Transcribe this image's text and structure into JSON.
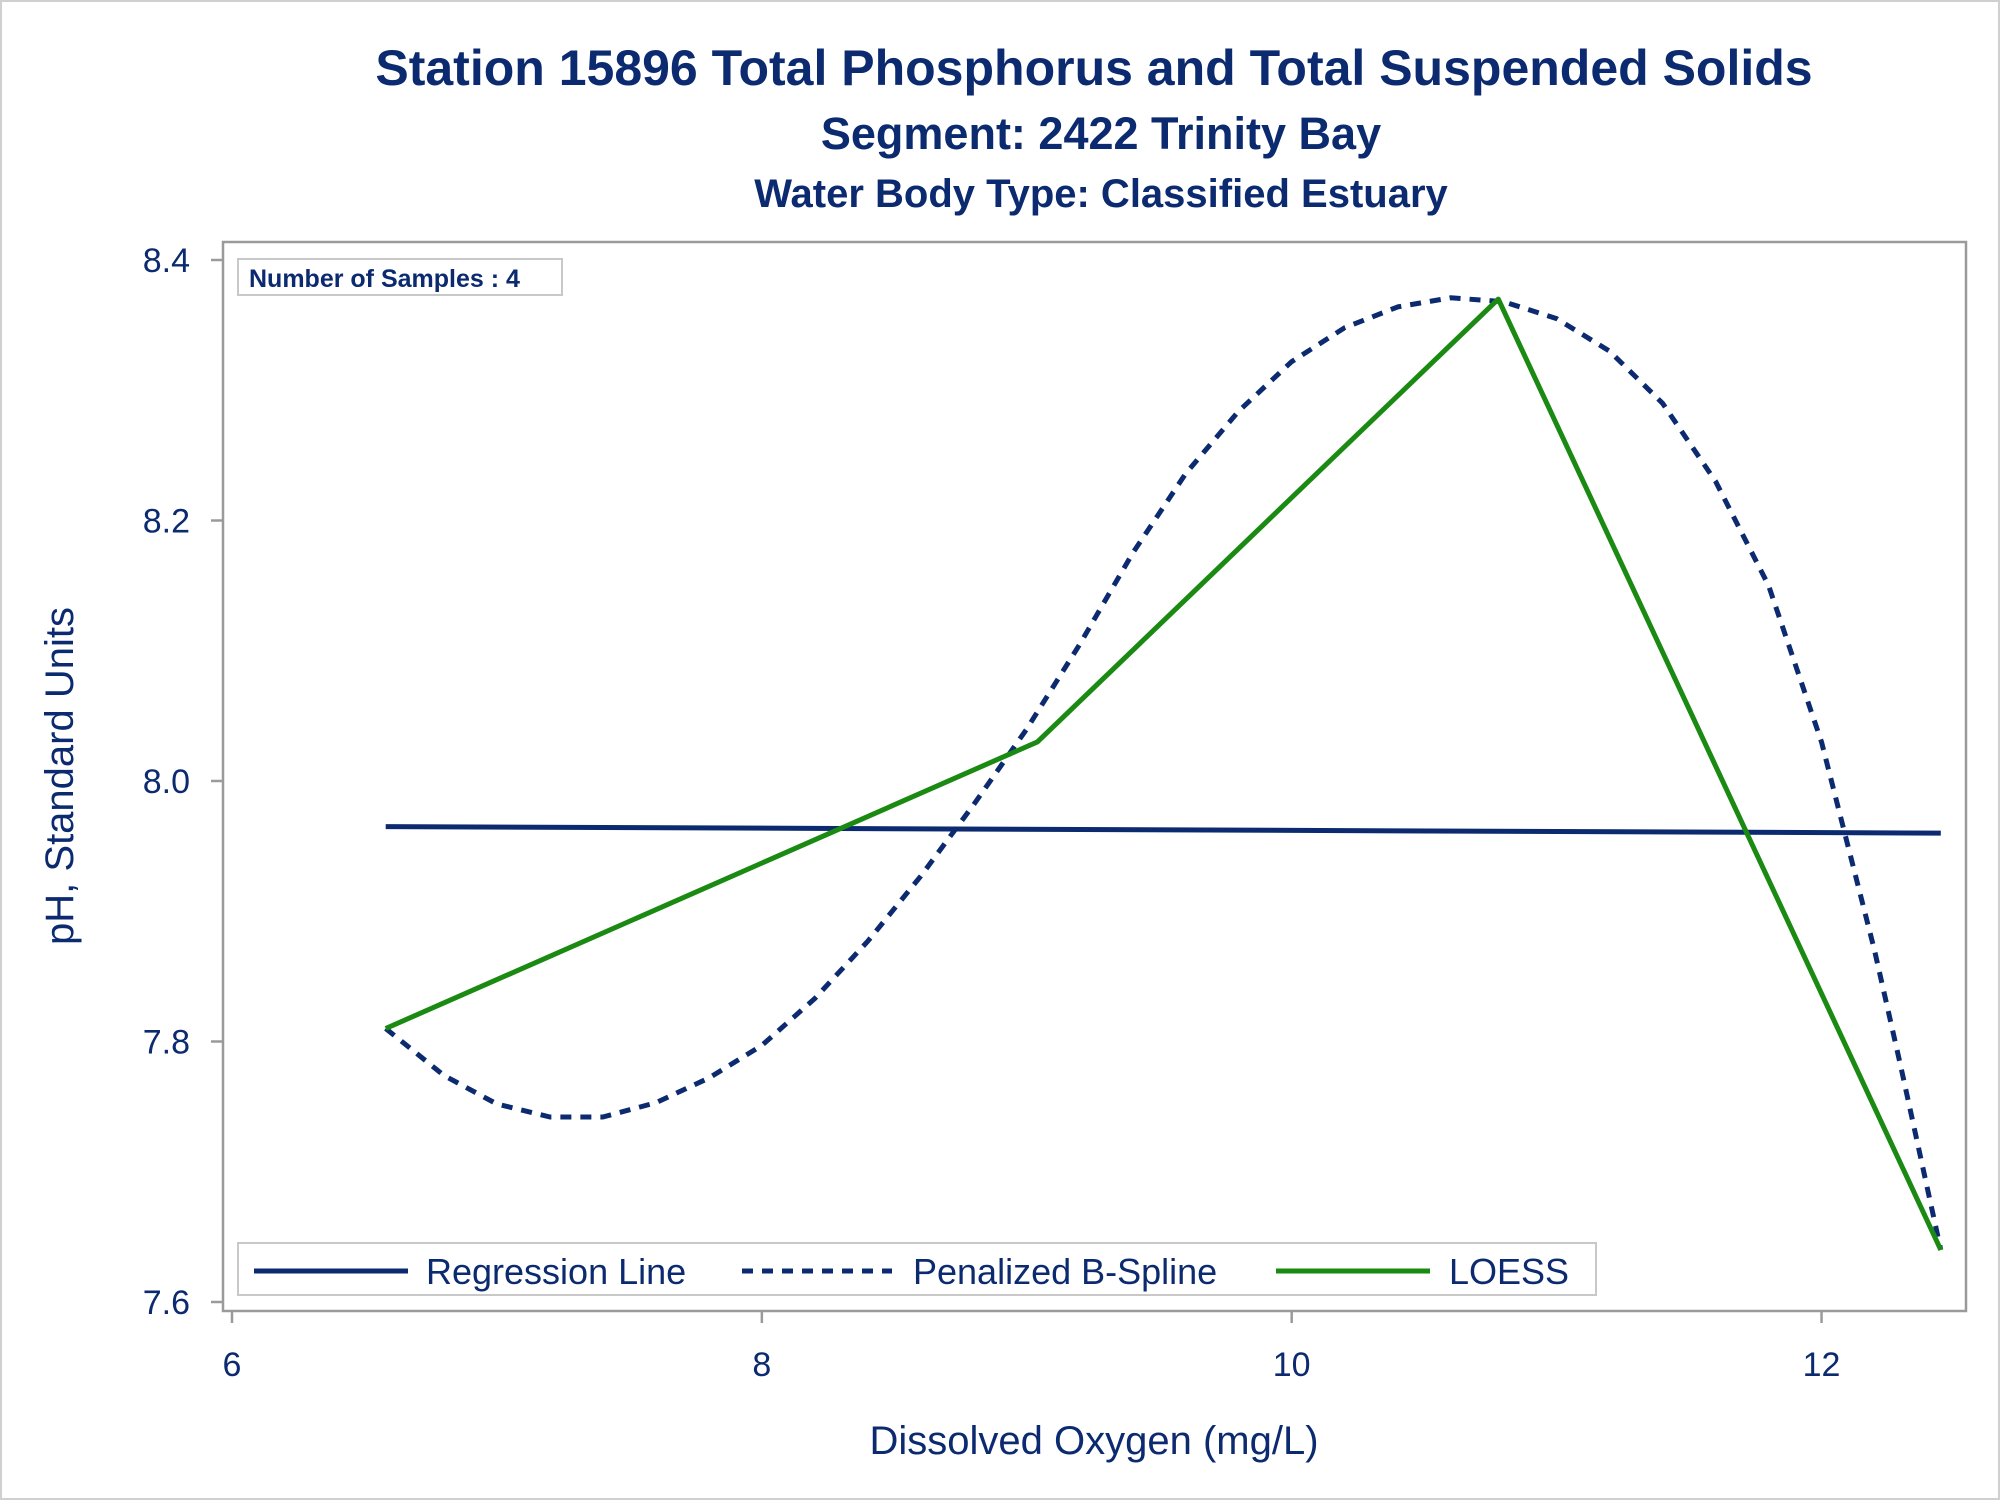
{
  "chart_data": {
    "type": "line",
    "title": "Station 15896  Total Phosphorus and Total Suspended Solids",
    "subtitle": "Segment: 2422  Trinity Bay",
    "subtitle2": "Water Body Type: Classified Estuary",
    "xlabel": "Dissolved Oxygen (mg/L)",
    "ylabel": "pH, Standard Units",
    "xlim": [
      6,
      12.5
    ],
    "ylim": [
      7.6,
      8.4
    ],
    "x_ticks": [
      6,
      8,
      10,
      12
    ],
    "y_ticks": [
      7.6,
      7.8,
      8.0,
      8.2,
      8.4
    ],
    "x_tick_labels": [
      "6",
      "8",
      "10",
      "12"
    ],
    "y_tick_labels": [
      "7.6",
      "7.8",
      "8.0",
      "8.2",
      "8.4"
    ],
    "grid": false,
    "legend_position": "bottom-inside",
    "inset_label": "Number of Samples : 4",
    "series": [
      {
        "name": "Regression Line",
        "style": "solid",
        "color": "#0b2a6f",
        "points": [
          [
            6.58,
            7.965
          ],
          [
            12.45,
            7.96
          ]
        ]
      },
      {
        "name": "Penalized B-Spline",
        "style": "dashed",
        "color": "#0b2a6f",
        "points": [
          [
            6.58,
            7.81
          ],
          [
            6.8,
            7.774
          ],
          [
            7.0,
            7.752
          ],
          [
            7.2,
            7.742
          ],
          [
            7.4,
            7.742
          ],
          [
            7.6,
            7.753
          ],
          [
            7.8,
            7.772
          ],
          [
            8.0,
            7.797
          ],
          [
            8.2,
            7.833
          ],
          [
            8.4,
            7.877
          ],
          [
            8.6,
            7.927
          ],
          [
            8.8,
            7.982
          ],
          [
            9.0,
            8.04
          ],
          [
            9.2,
            8.105
          ],
          [
            9.4,
            8.175
          ],
          [
            9.6,
            8.236
          ],
          [
            9.8,
            8.284
          ],
          [
            10.0,
            8.322
          ],
          [
            10.2,
            8.348
          ],
          [
            10.4,
            8.364
          ],
          [
            10.6,
            8.371
          ],
          [
            10.8,
            8.368
          ],
          [
            11.0,
            8.355
          ],
          [
            11.2,
            8.33
          ],
          [
            11.4,
            8.29
          ],
          [
            11.6,
            8.23
          ],
          [
            11.8,
            8.15
          ],
          [
            12.0,
            8.03
          ],
          [
            12.1,
            7.95
          ],
          [
            12.2,
            7.87
          ],
          [
            12.3,
            7.78
          ],
          [
            12.45,
            7.64
          ]
        ]
      },
      {
        "name": "LOESS",
        "style": "solid",
        "color": "#1a8a12",
        "points": [
          [
            6.58,
            7.81
          ],
          [
            9.04,
            8.03
          ],
          [
            10.78,
            8.37
          ],
          [
            12.45,
            7.64
          ]
        ]
      }
    ]
  }
}
